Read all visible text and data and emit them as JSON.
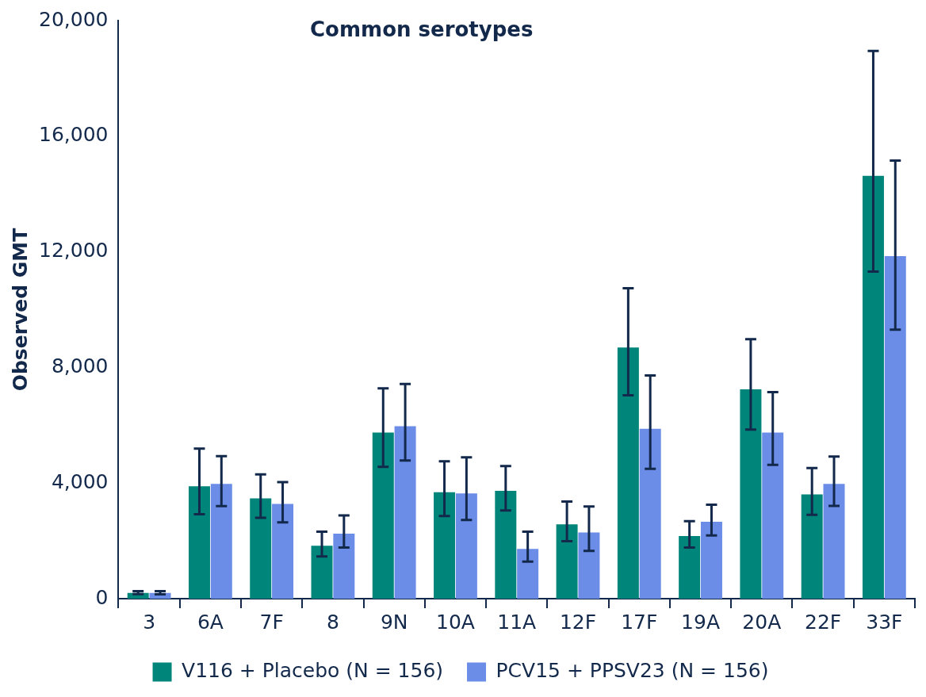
{
  "chart_data": {
    "type": "bar",
    "title": "Common serotypes",
    "ylabel": "Observed GMT",
    "categories": [
      "3",
      "6A",
      "7F",
      "8",
      "9N",
      "10A",
      "11A",
      "12F",
      "17F",
      "19A",
      "20A",
      "22F",
      "33F"
    ],
    "series": [
      {
        "name": "V116 + Placebo (N = 156)",
        "color": "#00857a",
        "values": [
          200,
          3890,
          3470,
          1830,
          5750,
          3680,
          3730,
          2570,
          8690,
          2170,
          7240,
          3610,
          14630
        ],
        "errors": [
          [
            160,
            260
          ],
          [
            2920,
            5190
          ],
          [
            2800,
            4300
          ],
          [
            1460,
            2320
          ],
          [
            4560,
            7280
          ],
          [
            2860,
            4750
          ],
          [
            3050,
            4590
          ],
          [
            1990,
            3360
          ],
          [
            7040,
            10740
          ],
          [
            1770,
            2680
          ],
          [
            5850,
            8980
          ],
          [
            2900,
            4520
          ],
          [
            11320,
            18950
          ]
        ]
      },
      {
        "name": "PCV15 + PPSV23 (N = 156)",
        "color": "#6b8de8",
        "values": [
          200,
          3970,
          3280,
          2250,
          5970,
          3640,
          1720,
          2290,
          5880,
          2660,
          5750,
          3970,
          11850
        ],
        "errors": [
          [
            150,
            260
          ],
          [
            3200,
            4930
          ],
          [
            2640,
            4030
          ],
          [
            1770,
            2880
          ],
          [
            4780,
            7430
          ],
          [
            2720,
            4890
          ],
          [
            1280,
            2320
          ],
          [
            1650,
            3190
          ],
          [
            4490,
            7720
          ],
          [
            2190,
            3250
          ],
          [
            4630,
            7150
          ],
          [
            3210,
            4920
          ],
          [
            9310,
            15160
          ]
        ]
      }
    ],
    "ylim": [
      0,
      20000
    ],
    "yticks": [
      0,
      {
        "value": 4000,
        "label": "4,000"
      },
      {
        "value": 8000,
        "label": "8,000"
      },
      {
        "value": 12000,
        "label": "12,000"
      },
      {
        "value": 16000,
        "label": "16,000"
      },
      {
        "value": 20000,
        "label": "20,000"
      }
    ],
    "grid": false,
    "legend": "bottom"
  }
}
